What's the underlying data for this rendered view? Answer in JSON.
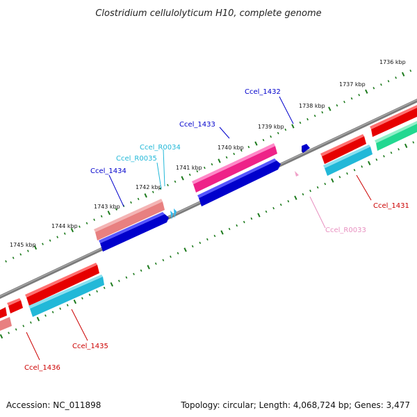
{
  "title": "Clostridium cellulolyticum H10, complete genome",
  "footer": {
    "accession": "Accession: NC_011898",
    "topology": "Topology: circular; Length: 4,068,724 bp; Genes: 3,477"
  },
  "colors": {
    "backbone": "#808080",
    "tick": "#1c7a1c",
    "dark_blue": "#0000cc",
    "red": "#e60000",
    "salmon": "#e88080",
    "magenta": "#ee2288",
    "cyan": "#22b8d8",
    "green": "#22d890",
    "light_pink": "#f0a0c8",
    "light_cyan": "#33bbee"
  },
  "ticks": [
    {
      "label": "1736 kbp"
    },
    {
      "label": "1737 kbp"
    },
    {
      "label": "1738 kbp"
    },
    {
      "label": "1739 kbp"
    },
    {
      "label": "1740 kbp"
    },
    {
      "label": "1741 kbp"
    },
    {
      "label": "1742 kbp"
    },
    {
      "label": "1743 kbp"
    },
    {
      "label": "1744 kbp"
    },
    {
      "label": "1745 kbp"
    }
  ],
  "genes": [
    {
      "label": "Ccel_1432",
      "color": "#0000cc"
    },
    {
      "label": "Ccel_1433",
      "color": "#0000cc"
    },
    {
      "label": "Ccel_R0034",
      "color": "#22b8d8"
    },
    {
      "label": "Ccel_R0035",
      "color": "#22b8d8"
    },
    {
      "label": "Ccel_1434",
      "color": "#0000cc"
    },
    {
      "label": "Ccel_1431",
      "color": "#cc0000"
    },
    {
      "label": "Ccel_R0033",
      "color": "#e890c0"
    },
    {
      "label": "Ccel_1435",
      "color": "#cc0000"
    },
    {
      "label": "Ccel_1436",
      "color": "#cc0000"
    }
  ]
}
